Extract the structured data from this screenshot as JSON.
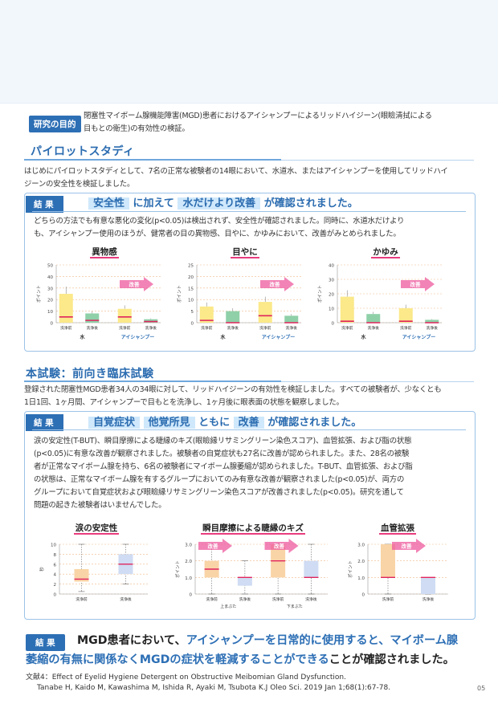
{
  "purpose": {
    "tag": "研究の目的",
    "line1": "閉塞性マイボーム腺機能障害(MGD)患者におけるアイシャンプーによるリッドハイジーン(眼瞼清拭による",
    "line2": "目もとの衛生)の有効性の検証。"
  },
  "pilot": {
    "title": "パイロットスタディ",
    "line1": "はじめにパイロットスタディとして、7名の正常な被験者の14眼において、水道水、またはアイシャンプーを使用してリッドハイ",
    "line2": "ジーンの安全性を検証しました。",
    "result_tag": "結 果",
    "hl1": "安全性",
    "mid1": "に加えて",
    "hl2": "水だけより改善",
    "end": "が確認されました。",
    "result_line1": "どちらの方法でも有意な悪化の変化(p<0.05)は検出されず、安全性が確認されました。同時に、水道水だけより",
    "result_line2": "も、アイシャンプー使用のほうが、健常者の目の異物感、目やに、かゆみにおいて、改善がみとめられました。"
  },
  "main_trial": {
    "title": "本試験：前向き臨床試験",
    "line1": "登録された閉塞性MGD患者34人の34眼に対して、リッドハイジーンの有効性を検証しました。すべての被験者が、少なくとも",
    "line2": "1日1回、1ヶ月間、アイシャンプーで目もとを洗浄し、1ヶ月後に眼表面の状態を観察しました。",
    "result_tag": "結 果",
    "hl1": "自覚症状",
    "hl2": "他覚所見",
    "mid": "ともに",
    "hl3": "改善",
    "end": "が確認されました。",
    "lines": [
      "涙の安定性(T-BUT)、瞬目摩擦による睫縁のキズ(眼瞼縁リサミングリーン染色スコア)、血管拡張、および脂の状態",
      "(p<0.05)に有意な改善が観察されました。被験者の自覚症状も27名に改善が認められました。また、28名の被験",
      "者が正常なマイボーム腺を持ち、6名の被験者にマイボーム腺萎縮が認められました。T-BUT、血管拡張、および脂",
      "の状態は、正常なマイボーム腺を有するグループにおいてのみ有意な改善が観察されました(p<0.05)が、両方の",
      "グループにおいて自覚症状および眼瞼縁リサミングリーン染色スコアが改善されました(p<0.05)。研究を通して",
      "問題の起きた被験者はいませんでした。"
    ]
  },
  "final": {
    "tag": "結 果",
    "t1": "MGD患者において、",
    "t2": "アイシャンプーを日常的に使用すると、マイボーム腺",
    "t3": "萎縮の有無に関係なくMGDの症状を軽減することができる",
    "t4": "ことが確認されました。"
  },
  "reference": {
    "label": "文献4：",
    "line1": "Effect of Eyelid Hygiene Detergent on Obstructive Meibomian Gland Dysfunction.",
    "line2": "Tanabe H, Kaido M, Kawashima M, Ishida R, Ayaki M, Tsubota K.J Oleo Sci. 2019 Jan 1;68(1):67-78."
  },
  "page_number": "05",
  "colors": {
    "accent": "#2d6fb5",
    "highlight": "#cfe8fb",
    "before_bar": "#fbe98a",
    "after_bar": "#8fd0a8",
    "median": "#e0245e",
    "arrow": "#ee5a9e",
    "box_orange": "#f9d4a6",
    "box_blue": "#cfdcf3"
  },
  "chart_data": [
    {
      "type": "bar",
      "title": "異物感",
      "ylabel": "ポイント",
      "ylim": [
        0,
        50
      ],
      "yticks": [
        "0",
        "10",
        "20",
        "30",
        "40",
        "50"
      ],
      "categories": [
        "洗浄前",
        "洗浄後",
        "洗浄前",
        "洗浄後"
      ],
      "groups": [
        "水",
        "アイシャンプー"
      ],
      "values": [
        25,
        8,
        12,
        3
      ],
      "markers": [
        5,
        2,
        5,
        1
      ],
      "improve_label": "改善"
    },
    {
      "type": "bar",
      "title": "目やに",
      "ylabel": "ポイント",
      "ylim": [
        0,
        25
      ],
      "yticks": [
        "0",
        "5",
        "10",
        "15",
        "20",
        "25"
      ],
      "categories": [
        "洗浄前",
        "洗浄後",
        "洗浄前",
        "洗浄後"
      ],
      "groups": [
        "水",
        "アイシャンプー"
      ],
      "values": [
        7,
        5,
        9,
        3
      ],
      "markers": [
        1,
        0,
        3,
        0
      ],
      "improve_label": "改善"
    },
    {
      "type": "bar",
      "title": "かゆみ",
      "ylabel": "ポイント",
      "ylim": [
        0,
        40
      ],
      "yticks": [
        "0",
        "10",
        "20",
        "30",
        "40"
      ],
      "categories": [
        "洗浄前",
        "洗浄後",
        "洗浄前",
        "洗浄後"
      ],
      "groups": [
        "水",
        "アイシャンプー"
      ],
      "values": [
        18,
        6,
        10,
        2
      ],
      "markers": [
        1,
        0,
        1,
        0
      ],
      "improve_label": "改善"
    },
    {
      "type": "box",
      "title": "涙の安定性",
      "ylabel": "秒",
      "ylim": [
        0,
        10
      ],
      "yticks": [
        "0",
        "2",
        "4",
        "6",
        "8",
        "10"
      ],
      "categories": [
        "洗浄前",
        "洗浄後"
      ],
      "boxes": [
        {
          "q1": 2.5,
          "median": 3,
          "q3": 5,
          "min": 0.5,
          "max": 10
        },
        {
          "q1": 4,
          "median": 6,
          "q3": 8,
          "min": 2,
          "max": 10
        }
      ]
    },
    {
      "type": "box",
      "title": "瞬目摩擦による睫縁のキズ",
      "ylabel": "ポイント",
      "ylim": [
        0,
        3
      ],
      "yticks": [
        "0",
        "1.0",
        "2.0",
        "3.0"
      ],
      "categories": [
        "洗浄前",
        "洗浄後",
        "洗浄前",
        "洗浄後"
      ],
      "groups": [
        "上まぶた",
        "下まぶた"
      ],
      "improve_label": "改善",
      "boxes": [
        {
          "q1": 1,
          "median": 1.5,
          "q3": 2,
          "min": 0,
          "max": 3
        },
        {
          "q1": 0.5,
          "median": 1,
          "q3": 1,
          "min": 0,
          "max": 2
        },
        {
          "q1": 1,
          "median": 2,
          "q3": 3,
          "min": 0,
          "max": 3
        },
        {
          "q1": 1,
          "median": 1,
          "q3": 2,
          "min": 0,
          "max": 3
        }
      ]
    },
    {
      "type": "box",
      "title": "血管拡張",
      "ylabel": "ポイント",
      "ylim": [
        0,
        3
      ],
      "yticks": [
        "0",
        "1.0",
        "2.0",
        "3.0"
      ],
      "categories": [
        "洗浄前",
        "洗浄後"
      ],
      "improve_label": "改善",
      "boxes": [
        {
          "q1": 1,
          "median": 1,
          "q3": 3,
          "min": 0,
          "max": 3
        },
        {
          "q1": 0,
          "median": 1,
          "q3": 1,
          "min": 0,
          "max": 1
        }
      ]
    }
  ]
}
